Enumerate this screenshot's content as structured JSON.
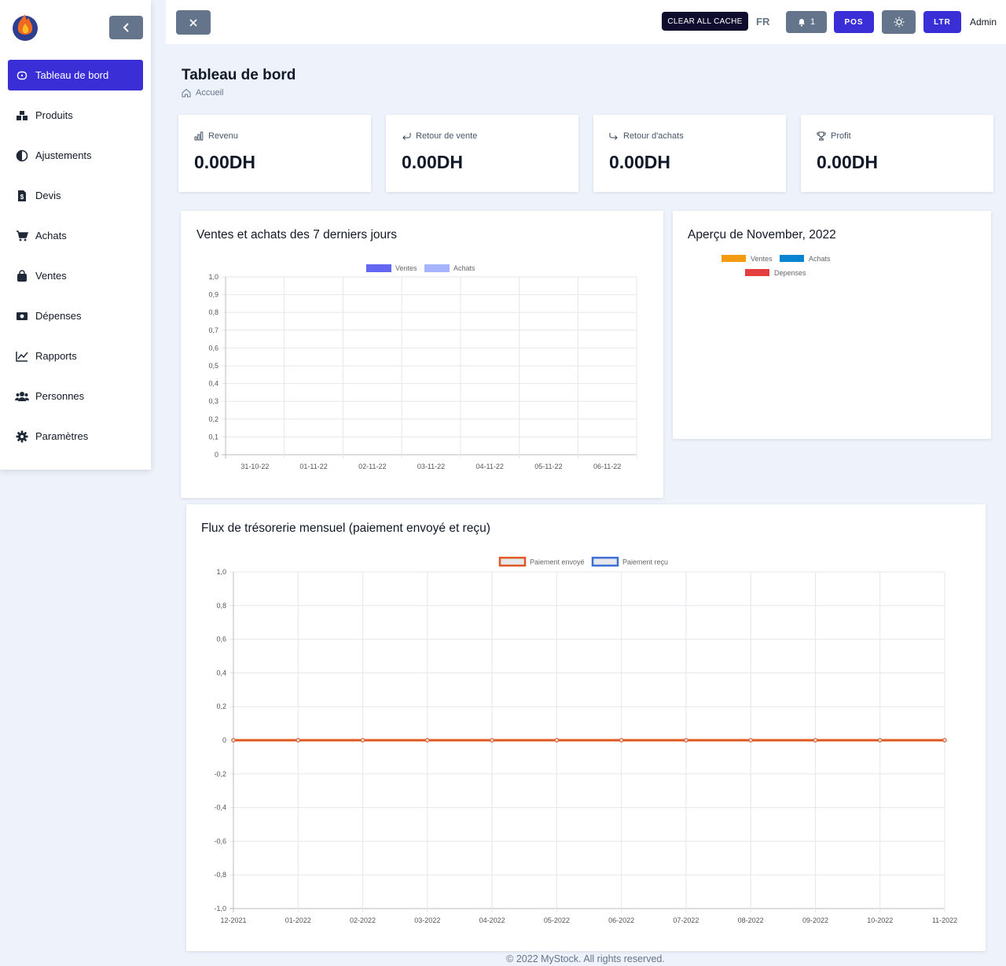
{
  "sidebar": {
    "items": [
      {
        "label": "Tableau de bord",
        "icon": "dashboard-icon",
        "active": true
      },
      {
        "label": "Produits",
        "icon": "boxes-icon"
      },
      {
        "label": "Ajustements",
        "icon": "contrast-icon"
      },
      {
        "label": "Devis",
        "icon": "invoice-icon"
      },
      {
        "label": "Achats",
        "icon": "cart-icon"
      },
      {
        "label": "Ventes",
        "icon": "bag-icon"
      },
      {
        "label": "Dépenses",
        "icon": "money-icon"
      },
      {
        "label": "Rapports",
        "icon": "chart-line-icon"
      },
      {
        "label": "Personnes",
        "icon": "people-icon"
      },
      {
        "label": "Paramètres",
        "icon": "gear-icon"
      }
    ]
  },
  "topbar": {
    "cache_label": "CLEAR ALL CACHE",
    "lang": "FR",
    "notifications": "1",
    "pos_label": "POS",
    "ltr_label": "LTR",
    "user": "Admin"
  },
  "page": {
    "title": "Tableau de bord",
    "breadcrumb": "Accueil"
  },
  "stats": [
    {
      "label": "Revenu",
      "value": "0.00DH",
      "icon": "bar-chart-icon"
    },
    {
      "label": "Retour de vente",
      "value": "0.00DH",
      "icon": "return-icon"
    },
    {
      "label": "Retour d'achats",
      "value": "0.00DH",
      "icon": "share-icon"
    },
    {
      "label": "Profit",
      "value": "0.00DH",
      "icon": "trophy-icon"
    }
  ],
  "colors": {
    "primary": "#3a2fd6",
    "ventes": "#6366f1",
    "achats": "#a5b4fc",
    "pie_ventes": "#f39c12",
    "pie_achats": "#0a84d0",
    "pie_depenses": "#e53e3e",
    "sent": "#e0571f",
    "received": "#3b6fd6"
  },
  "overview": {
    "title": "Aperçu de November, 2022",
    "legend": [
      "Ventes",
      "Achats",
      "Depenses"
    ]
  },
  "footer": "© 2022 MyStock. All rights reserved.",
  "chart_data": [
    {
      "type": "bar",
      "title": "Ventes et achats des 7 derniers jours",
      "categories": [
        "31-10-22",
        "01-11-22",
        "02-11-22",
        "03-11-22",
        "04-11-22",
        "05-11-22",
        "06-11-22"
      ],
      "series": [
        {
          "name": "Ventes",
          "values": [
            0,
            0,
            0,
            0,
            0,
            0,
            0
          ]
        },
        {
          "name": "Achats",
          "values": [
            0,
            0,
            0,
            0,
            0,
            0,
            0
          ]
        }
      ],
      "ylim": [
        0,
        1
      ],
      "yticks": [
        "0",
        "0,1",
        "0,2",
        "0,3",
        "0,4",
        "0,5",
        "0,6",
        "0,7",
        "0,8",
        "0,9",
        "1,0"
      ]
    },
    {
      "type": "line",
      "title": "Flux de trésorerie mensuel (paiement envoyé et reçu)",
      "categories": [
        "12-2021",
        "01-2022",
        "02-2022",
        "03-2022",
        "04-2022",
        "05-2022",
        "06-2022",
        "07-2022",
        "08-2022",
        "09-2022",
        "10-2022",
        "11-2022"
      ],
      "series": [
        {
          "name": "Paiement envoyé",
          "values": [
            0,
            0,
            0,
            0,
            0,
            0,
            0,
            0,
            0,
            0,
            0,
            0
          ]
        },
        {
          "name": "Paiement reçu",
          "values": [
            0,
            0,
            0,
            0,
            0,
            0,
            0,
            0,
            0,
            0,
            0,
            0
          ]
        }
      ],
      "ylim": [
        -1,
        1
      ],
      "yticks": [
        "-1,0",
        "-0,8",
        "-0,6",
        "-0,4",
        "-0,2",
        "0",
        "0,2",
        "0,4",
        "0,6",
        "0,8",
        "1,0"
      ]
    }
  ]
}
